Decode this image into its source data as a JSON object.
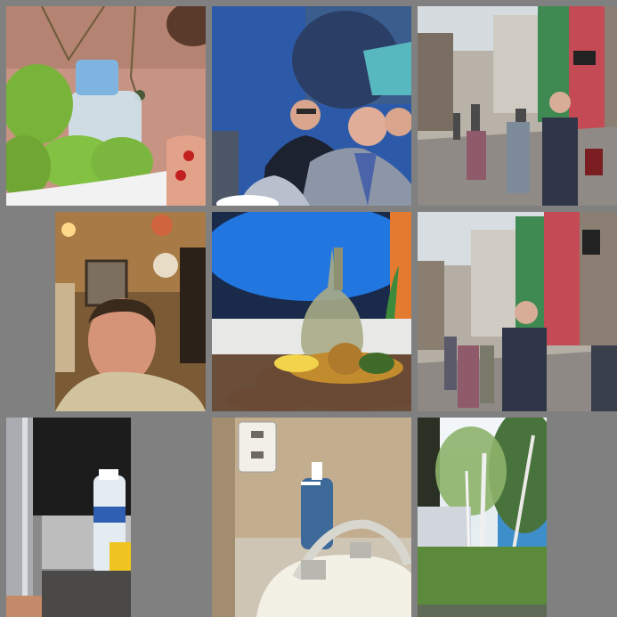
{
  "grid": {
    "background": "#808080",
    "tiles": [
      {
        "subject": "green-apples-and-water-bottle"
      },
      {
        "subject": "men-in-suits-seated"
      },
      {
        "subject": "pedestrian-street"
      },
      {
        "subject": "man-in-restaurant"
      },
      {
        "subject": "glass-bottle-fruit-bowl"
      },
      {
        "subject": "pedestrian-street-2"
      },
      {
        "subject": "water-bottle-on-table"
      },
      {
        "subject": "bathroom-sink-soap"
      },
      {
        "subject": "birch-trees-lake"
      }
    ]
  }
}
